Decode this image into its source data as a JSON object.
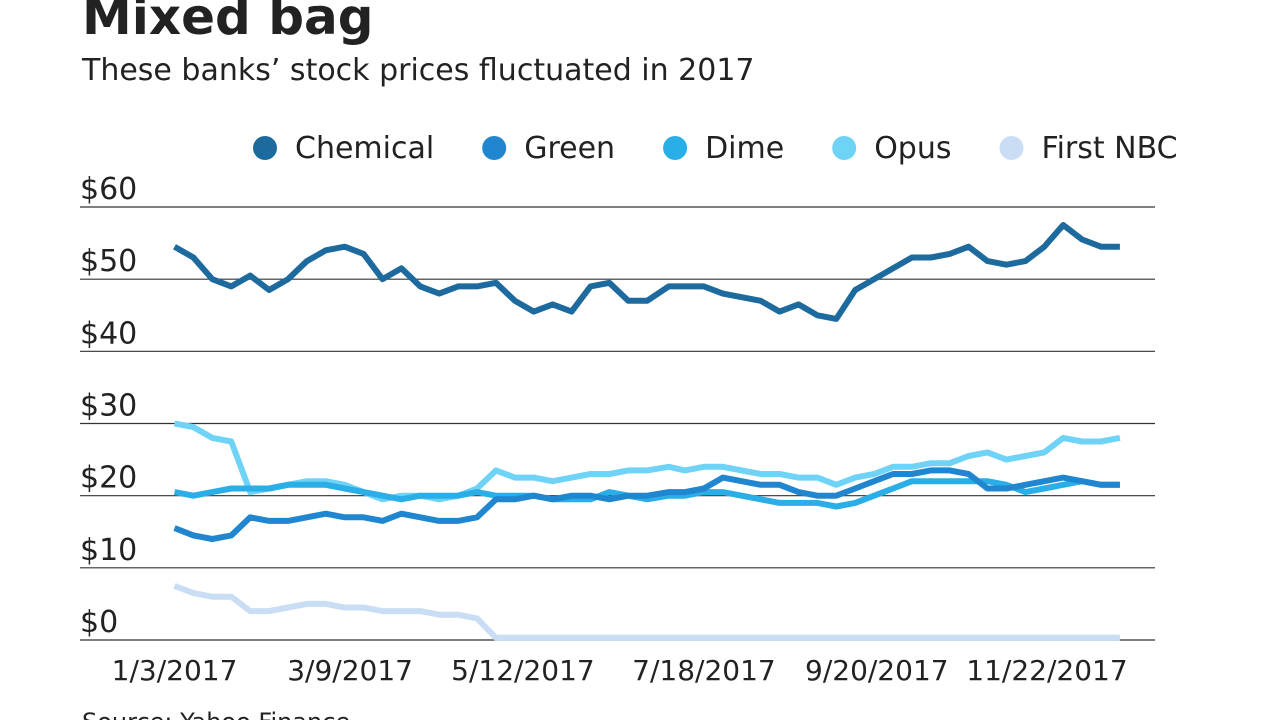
{
  "chart_data": {
    "type": "line",
    "title": "Mixed bag",
    "subtitle": "These banks’ stock prices fluctuated in 2017",
    "source": "Source: Yahoo Finance",
    "x": [
      "1/3/2017",
      "1/10/2017",
      "1/17/2017",
      "1/24/2017",
      "1/31/2017",
      "2/7/2017",
      "2/14/2017",
      "2/21/2017",
      "2/28/2017",
      "3/7/2017",
      "3/14/2017",
      "3/21/2017",
      "3/28/2017",
      "4/4/2017",
      "4/11/2017",
      "4/18/2017",
      "4/25/2017",
      "5/2/2017",
      "5/9/2017",
      "5/16/2017",
      "5/23/2017",
      "5/30/2017",
      "6/6/2017",
      "6/13/2017",
      "6/20/2017",
      "6/27/2017",
      "7/5/2017",
      "7/11/2017",
      "7/18/2017",
      "7/25/2017",
      "8/1/2017",
      "8/8/2017",
      "8/15/2017",
      "8/22/2017",
      "8/29/2017",
      "9/5/2017",
      "9/12/2017",
      "9/19/2017",
      "9/26/2017",
      "10/3/2017",
      "10/10/2017",
      "10/17/2017",
      "10/24/2017",
      "10/31/2017",
      "11/7/2017",
      "11/14/2017",
      "11/21/2017",
      "11/28/2017",
      "12/5/2017",
      "12/12/2017",
      "12/19/2017"
    ],
    "xlim": [
      "11/29/2016",
      "1/1/2018"
    ],
    "xticks": [
      "1/3/2017",
      "3/9/2017",
      "5/12/2017",
      "7/18/2017",
      "9/20/2017",
      "11/22/2017"
    ],
    "ylim": [
      0,
      60
    ],
    "yticks": [
      {
        "value": 0,
        "label": "$0"
      },
      {
        "value": 10,
        "label": "$10"
      },
      {
        "value": 20,
        "label": "$20"
      },
      {
        "value": 30,
        "label": "$30"
      },
      {
        "value": 40,
        "label": "$40"
      },
      {
        "value": 50,
        "label": "$50"
      },
      {
        "value": 60,
        "label": "$60"
      }
    ],
    "grid": true,
    "legend": "top",
    "series": [
      {
        "name": "Chemical",
        "color": "#1d6a9e",
        "values": [
          54.5,
          53,
          50,
          49,
          50.5,
          48.5,
          50,
          52.5,
          54,
          54.5,
          53.5,
          50,
          51.5,
          49,
          48,
          49,
          49,
          49.5,
          47,
          45.5,
          46.5,
          45.5,
          49,
          49.5,
          47,
          47,
          49,
          49,
          49,
          48,
          47.5,
          47,
          45.5,
          46.5,
          45,
          44.5,
          48.5,
          50,
          51.5,
          53,
          53,
          53.5,
          54.5,
          52.5,
          52,
          52.5,
          54.5,
          57.5,
          55.5,
          54.5,
          54.5
        ]
      },
      {
        "name": "Green",
        "color": "#1f86cf",
        "values": [
          15.5,
          14.5,
          14,
          14.5,
          17,
          16.5,
          16.5,
          17,
          17.5,
          17,
          17,
          16.5,
          17.5,
          17,
          16.5,
          16.5,
          17,
          19.5,
          19.5,
          20,
          19.5,
          20,
          20,
          19.5,
          20,
          20,
          20.5,
          20.5,
          21,
          22.5,
          22,
          21.5,
          21.5,
          20.5,
          20,
          20,
          21,
          22,
          23,
          23,
          23.5,
          23.5,
          23,
          21,
          21,
          21.5,
          22,
          22.5,
          22,
          21.5,
          21.5
        ]
      },
      {
        "name": "Dime",
        "color": "#29aee8",
        "values": [
          20.5,
          20,
          20.5,
          21,
          21,
          21,
          21.5,
          21.5,
          21.5,
          21,
          20.5,
          20,
          19.5,
          20,
          20,
          20,
          20.5,
          20,
          20,
          20,
          19.5,
          19.5,
          19.5,
          20.5,
          20,
          19.5,
          20,
          20,
          20.5,
          20.5,
          20,
          19.5,
          19,
          19,
          19,
          18.5,
          19,
          20,
          21,
          22,
          22,
          22,
          22,
          22,
          21.5,
          20.5,
          21,
          21.5,
          22,
          21.5,
          21.5
        ]
      },
      {
        "name": "Opus",
        "color": "#6fd2f7",
        "values": [
          30,
          29.5,
          28,
          27.5,
          20.5,
          21,
          21.5,
          22,
          22,
          21.5,
          20.5,
          19.5,
          20,
          20,
          19.5,
          20,
          21,
          23.5,
          22.5,
          22.5,
          22,
          22.5,
          23,
          23,
          23.5,
          23.5,
          24,
          23.5,
          24,
          24,
          23.5,
          23,
          23,
          22.5,
          22.5,
          21.5,
          22.5,
          23,
          24,
          24,
          24.5,
          24.5,
          25.5,
          26,
          25,
          25.5,
          26,
          28,
          27.5,
          27.5,
          28
        ]
      },
      {
        "name": "First NBC",
        "color": "#c9def5",
        "values": [
          7.5,
          6.5,
          6,
          6,
          4,
          4,
          4.5,
          5,
          5,
          4.5,
          4.5,
          4,
          4,
          4,
          3.5,
          3.5,
          3,
          0.3,
          0.3,
          0.3,
          0.3,
          0.3,
          0.3,
          0.3,
          0.3,
          0.3,
          0.3,
          0.3,
          0.3,
          0.3,
          0.3,
          0.3,
          0.3,
          0.3,
          0.3,
          0.3,
          0.3,
          0.3,
          0.3,
          0.3,
          0.3,
          0.3,
          0.3,
          0.3,
          0.3,
          0.3,
          0.3,
          0.3,
          0.3,
          0.3,
          0.3
        ]
      }
    ]
  }
}
